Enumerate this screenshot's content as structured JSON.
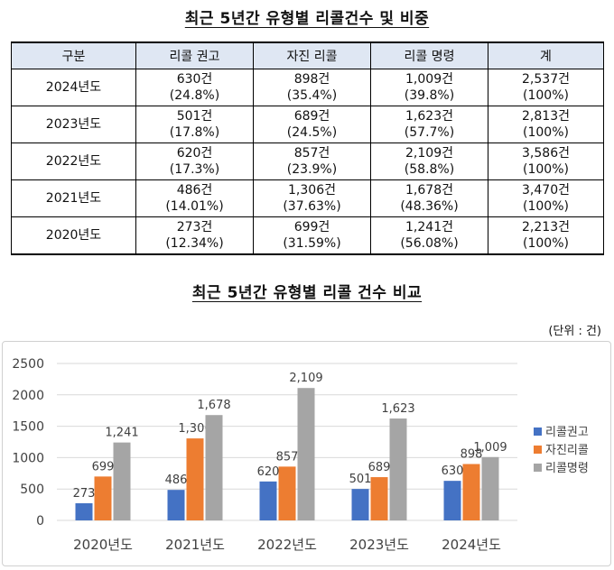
{
  "table": {
    "title": "최근 5년간 유형별 리콜건수 및 비중",
    "headers": [
      "구분",
      "리콜 권고",
      "자진 리콜",
      "리콜 명령",
      "계"
    ],
    "rows": [
      {
        "year": "2024년도",
        "cells": [
          [
            "630건",
            "(24.8%)"
          ],
          [
            "898건",
            "(35.4%)"
          ],
          [
            "1,009건",
            "(39.8%)"
          ],
          [
            "2,537건",
            "(100%)"
          ]
        ]
      },
      {
        "year": "2023년도",
        "cells": [
          [
            "501건",
            "(17.8%)"
          ],
          [
            "689건",
            "(24.5%)"
          ],
          [
            "1,623건",
            "(57.7%)"
          ],
          [
            "2,813건",
            "(100%)"
          ]
        ]
      },
      {
        "year": "2022년도",
        "cells": [
          [
            "620건",
            "(17.3%)"
          ],
          [
            "857건",
            "(23.9%)"
          ],
          [
            "2,109건",
            "(58.8%)"
          ],
          [
            "3,586건",
            "(100%)"
          ]
        ]
      },
      {
        "year": "2021년도",
        "cells": [
          [
            "486건",
            "(14.01%)"
          ],
          [
            "1,306건",
            "(37.63%)"
          ],
          [
            "1,678건",
            "(48.36%)"
          ],
          [
            "3,470건",
            "(100%)"
          ]
        ]
      },
      {
        "year": "2020년도",
        "cells": [
          [
            "273건",
            "(12.34%)"
          ],
          [
            "699건",
            "(31.59%)"
          ],
          [
            "1,241건",
            "(56.08%)"
          ],
          [
            "2,213건",
            "(100%)"
          ]
        ]
      }
    ]
  },
  "chart_section": {
    "title": "최근 5년간 유형별 리콜 건수 비교",
    "unit": "(단위 : 건)"
  },
  "chart_data": {
    "type": "bar",
    "categories": [
      "2020년도",
      "2021년도",
      "2022년도",
      "2023년도",
      "2024년도"
    ],
    "series": [
      {
        "name": "리콜권고",
        "color": "#4472c4",
        "values": [
          273,
          486,
          620,
          501,
          630
        ],
        "labels": [
          "273",
          "486",
          "620",
          "501",
          "630"
        ]
      },
      {
        "name": "자진리콜",
        "color": "#ed7d31",
        "values": [
          699,
          1306,
          857,
          689,
          898
        ],
        "labels": [
          "699",
          "1,306",
          "857",
          "689",
          "898"
        ]
      },
      {
        "name": "리콜명령",
        "color": "#a5a5a5",
        "values": [
          1241,
          1678,
          2109,
          1623,
          1009
        ],
        "labels": [
          "1,241",
          "1,678",
          "2,109",
          "1,623",
          "1,009"
        ]
      }
    ],
    "ylim": [
      0,
      2500
    ],
    "yticks": [
      0,
      500,
      1000,
      1500,
      2000,
      2500
    ],
    "grid": true,
    "legend": "right"
  }
}
